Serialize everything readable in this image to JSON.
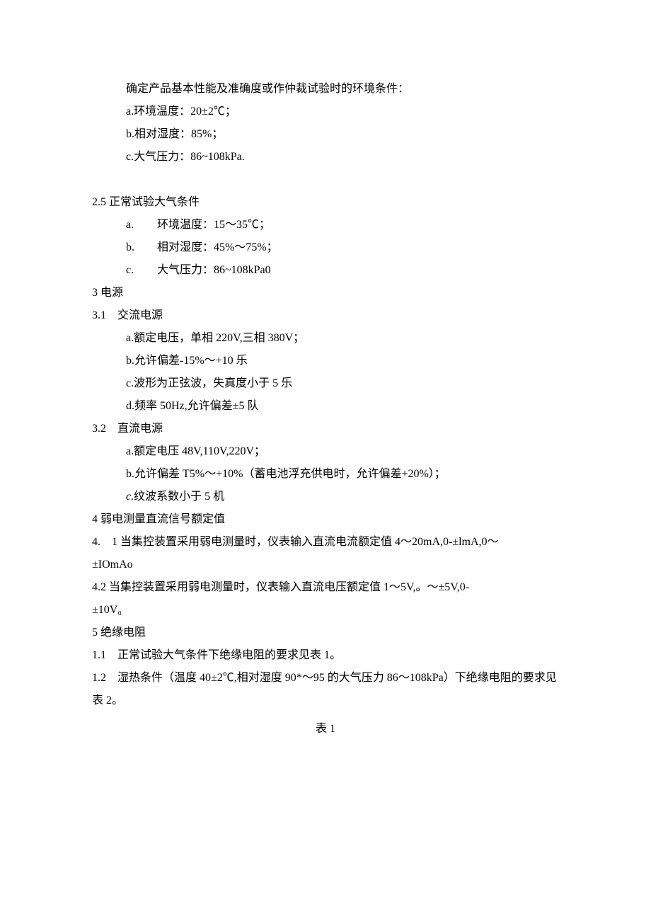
{
  "intro": {
    "line": "确定产品基本性能及准确度或作仲裁试验时的环境条件：",
    "items": [
      "a.环境温度：20±2℃；",
      "b.相对湿度：85%；",
      "c.大气压力：86~108kPa."
    ]
  },
  "sec25": {
    "heading": "2.5 正常试验大气条件",
    "items": [
      {
        "marker": "a.",
        "text": "环境温度：15～35℃；"
      },
      {
        "marker": "b.",
        "text": "相对湿度：45%～75%；"
      },
      {
        "marker": "c.",
        "text": "大气压力：86~108kPa0"
      }
    ]
  },
  "sec3": {
    "heading": "3 电源",
    "sub31": {
      "heading": "3.1　交流电源",
      "items": [
        "a.额定电压，单相 220V,三相 380V；",
        "b.允许偏差-15%～+10 乐",
        "c.波形为正弦波，失真度小于 5 乐",
        "d.频率 50Hz,允许偏差±5 队"
      ]
    },
    "sub32": {
      "heading": "3.2　直流电源",
      "items": [
        "a.额定电压 48V,110V,220V；",
        "b.允许偏差 T5%～+10%（蓄电池浮充供电时，允许偏差+20%）；"
      ],
      "item_c_prefix": "c.",
      "item_c_text": "纹波系数小于 5 机"
    }
  },
  "sec4": {
    "heading": "4 弱电测量直流信号额定值",
    "para41a": "4.　1 当集控装置采用弱电测量时，仪表输入直流电流额定值 4～20mA,0-±lmA,0～",
    "para41b": "±IOmAo",
    "para42a": "4.2 当集控装置采用弱电测量时，仪表输入直流电压额定值 1～5V,。～±5V,0-",
    "para42b": "±10V₀"
  },
  "sec5": {
    "heading": "5 绝缘电阻",
    "items": [
      "1.1　正常试验大气条件下绝缘电阻的要求见表 1。",
      "1.2　湿热条件（温度 40±2℃,相对湿度 90*～95 的大气压力 86～108kPa）下绝缘电阻的要求见表 2。"
    ]
  },
  "table_label": "表 1",
  "style": {
    "font_size_pt": 12,
    "text_color": "#000000",
    "background_color": "#ffffff",
    "line_height": 2.0
  }
}
